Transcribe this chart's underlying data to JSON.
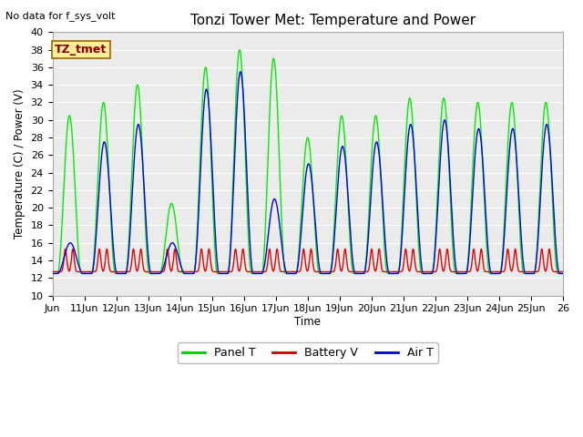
{
  "title": "Tonzi Tower Met: Temperature and Power",
  "top_left_text": "No data for f_sys_volt",
  "xlabel": "Time",
  "ylabel": "Temperature (C) / Power (V)",
  "ylim": [
    10,
    40
  ],
  "xtick_labels": [
    "Jun",
    "11Jun",
    "12Jun",
    "13Jun",
    "14Jun",
    "15Jun",
    "16Jun",
    "17Jun",
    "18Jun",
    "19Jun",
    "20Jun",
    "21Jun",
    "22Jun",
    "23Jun",
    "24Jun",
    "25Jun",
    "26"
  ],
  "legend_labels": [
    "Panel T",
    "Battery V",
    "Air T"
  ],
  "legend_colors": [
    "#00cc00",
    "#cc0000",
    "#0000cc"
  ],
  "panel_color": "#00ee00",
  "battery_color": "#ee0000",
  "air_color": "#0000ee",
  "fig_bg_color": "#ffffff",
  "plot_bg_color": "#ebebeb",
  "grid_color": "#ffffff",
  "annotation_box_color": "#ffee99",
  "annotation_text": "TZ_tmet",
  "annotation_text_color": "#880000",
  "annotation_edge_color": "#996600",
  "panel_peaks": [
    30.5,
    32.0,
    34.0,
    20.5,
    36.0,
    38.0,
    37.0,
    28.0,
    30.5,
    30.5,
    32.5,
    32.5,
    32.0,
    32.0,
    32.0
  ],
  "air_peaks": [
    16.0,
    27.5,
    29.5,
    16.0,
    33.5,
    35.5,
    21.0,
    25.0,
    27.0,
    27.5,
    29.5,
    30.0,
    29.0,
    29.0,
    29.5
  ],
  "night_min_panel": 12.5,
  "night_min_air": 12.5,
  "night_min_bat": 12.7,
  "bat_peak": 15.3
}
